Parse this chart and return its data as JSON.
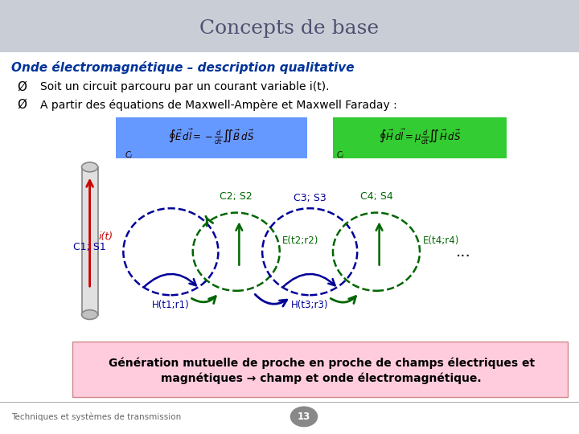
{
  "title": "Concepts de base",
  "subtitle": "Onde électromagnétique – description qualitative",
  "bullet1": "Soit un circuit parcouru par un courant variable i(t).",
  "bullet2": "A partir des équations de Maxwell-Ampère et Maxwell Faraday :",
  "bottom_text1": "Génération mutuelle de proche en proche de champs électriques et",
  "bottom_text2": "magnétiques → champ et onde électromagnétique.",
  "footer_left": "Techniques et systèmes de transmission",
  "footer_page": "13",
  "title_color": "#505070",
  "subtitle_color": "#003399",
  "header_bg": "#c8cdd6",
  "body_bg": "#ffffff",
  "blue_eq_bg": "#6699ff",
  "green_eq_bg": "#33cc33",
  "bottom_box_bg": "#ffccdd",
  "dashed_blue": "#000099",
  "dashed_green": "#006600",
  "arrow_green": "#006600",
  "arrow_red": "#cc0000",
  "label_green": "#006600",
  "label_blue": "#000099",
  "dots": "...",
  "footer_circle_color": "#888888"
}
